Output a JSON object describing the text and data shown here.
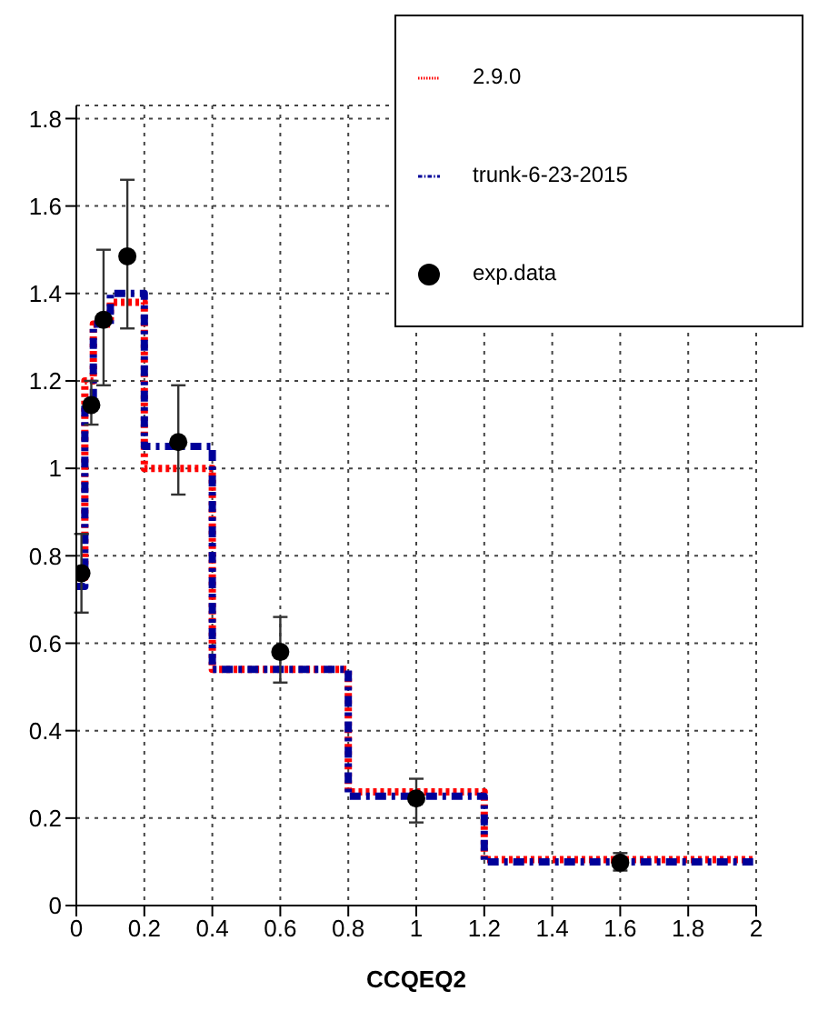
{
  "chart_data": {
    "type": "step",
    "xlabel": "CCQEQ2",
    "xlim": [
      0,
      2
    ],
    "xticks": [
      0,
      0.2,
      0.4,
      0.6,
      0.8,
      1,
      1.2,
      1.4,
      1.6,
      1.8,
      2
    ],
    "ylim": [
      0,
      1.83
    ],
    "yticks": [
      0,
      0.2,
      0.4,
      0.6,
      0.8,
      1,
      1.2,
      1.4,
      1.6,
      1.8
    ],
    "grid": true,
    "legend": "top right",
    "series": [
      {
        "name": "2.9.0",
        "color": "#ff0000",
        "line_style": "dotted",
        "x": [
          0,
          0.025,
          0.05,
          0.1,
          0.2,
          0.4,
          0.8,
          1.2,
          2
        ],
        "values": [
          0.75,
          1.2,
          1.33,
          1.38,
          1.0,
          0.54,
          0.26,
          0.105,
          0.105
        ]
      },
      {
        "name": "trunk-6-23-2015",
        "color": "#000099",
        "line_style": "dashed",
        "x": [
          0,
          0.025,
          0.05,
          0.1,
          0.2,
          0.4,
          0.8,
          1.2,
          2
        ],
        "values": [
          0.73,
          1.15,
          1.33,
          1.4,
          1.05,
          0.54,
          0.25,
          0.1,
          0.1
        ]
      },
      {
        "name": "exp.data",
        "type": "scatter",
        "color": "#000000",
        "marker": "circle",
        "x": [
          0.015,
          0.044,
          0.08,
          0.15,
          0.3,
          0.6,
          1.0,
          1.6
        ],
        "values": [
          0.76,
          1.145,
          1.34,
          1.485,
          1.06,
          0.58,
          0.245,
          0.098
        ],
        "errors": [
          [
            0.67,
            0.85
          ],
          [
            1.1,
            1.2
          ],
          [
            1.19,
            1.5
          ],
          [
            1.32,
            1.66
          ],
          [
            0.94,
            1.19
          ],
          [
            0.51,
            0.66
          ],
          [
            0.19,
            0.29
          ],
          [
            0.08,
            0.12
          ]
        ]
      }
    ]
  }
}
